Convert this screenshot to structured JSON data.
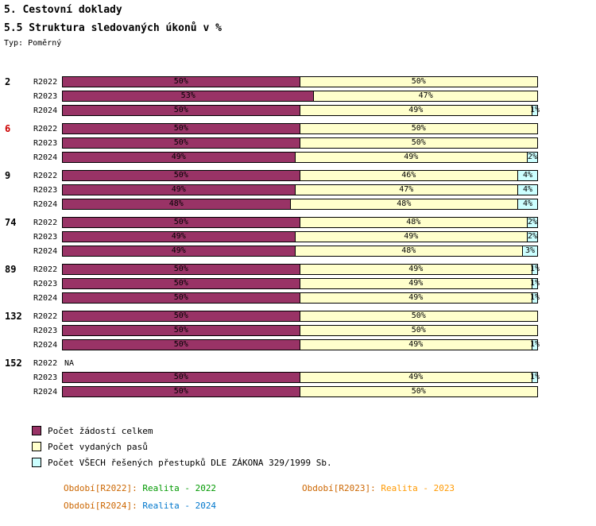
{
  "header": {
    "title": "5. Cestovní doklady",
    "subtitle": "5.5 Struktura sledovaných úkonů v %",
    "type_label": "Typ: Poměrný"
  },
  "chart_data": {
    "type": "bar",
    "orientation": "horizontal",
    "stacked": true,
    "value_unit": "%",
    "axis_range": [
      0,
      100
    ],
    "na_label": "NA",
    "highlight_color": "#cc0000",
    "series": [
      {
        "name": "Počet žádostí celkem",
        "color": "#993366"
      },
      {
        "name": "Počet vydaných pasů",
        "color": "#ffffcc"
      },
      {
        "name": "Počet VŠECH řešených přestupků DLE ZÁKONA 329/1999 Sb.",
        "color": "#ccffff"
      }
    ],
    "groups": [
      {
        "label": "2",
        "highlight": false,
        "rows": [
          {
            "period": "R2022",
            "na": false,
            "values": [
              50,
              50,
              0
            ]
          },
          {
            "period": "R2023",
            "na": false,
            "values": [
              53,
              47,
              0
            ]
          },
          {
            "period": "R2024",
            "na": false,
            "values": [
              50,
              49,
              1
            ]
          }
        ]
      },
      {
        "label": "6",
        "highlight": true,
        "rows": [
          {
            "period": "R2022",
            "na": false,
            "values": [
              50,
              50,
              0
            ]
          },
          {
            "period": "R2023",
            "na": false,
            "values": [
              50,
              50,
              0
            ]
          },
          {
            "period": "R2024",
            "na": false,
            "values": [
              49,
              49,
              2
            ]
          }
        ]
      },
      {
        "label": "9",
        "highlight": false,
        "rows": [
          {
            "period": "R2022",
            "na": false,
            "values": [
              50,
              46,
              4
            ]
          },
          {
            "period": "R2023",
            "na": false,
            "values": [
              49,
              47,
              4
            ]
          },
          {
            "period": "R2024",
            "na": false,
            "values": [
              48,
              48,
              4
            ]
          }
        ]
      },
      {
        "label": "74",
        "highlight": false,
        "rows": [
          {
            "period": "R2022",
            "na": false,
            "values": [
              50,
              48,
              2
            ]
          },
          {
            "period": "R2023",
            "na": false,
            "values": [
              49,
              49,
              2
            ]
          },
          {
            "period": "R2024",
            "na": false,
            "values": [
              49,
              48,
              3
            ]
          }
        ]
      },
      {
        "label": "89",
        "highlight": false,
        "rows": [
          {
            "period": "R2022",
            "na": false,
            "values": [
              50,
              49,
              1
            ]
          },
          {
            "period": "R2023",
            "na": false,
            "values": [
              50,
              49,
              1
            ]
          },
          {
            "period": "R2024",
            "na": false,
            "values": [
              50,
              49,
              1
            ]
          }
        ]
      },
      {
        "label": "132",
        "highlight": false,
        "rows": [
          {
            "period": "R2022",
            "na": false,
            "values": [
              50,
              50,
              0
            ]
          },
          {
            "period": "R2023",
            "na": false,
            "values": [
              50,
              50,
              0
            ]
          },
          {
            "period": "R2024",
            "na": false,
            "values": [
              50,
              49,
              1
            ]
          }
        ]
      },
      {
        "label": "152",
        "highlight": false,
        "rows": [
          {
            "period": "R2022",
            "na": true,
            "values": [
              0,
              0,
              0
            ]
          },
          {
            "period": "R2023",
            "na": false,
            "values": [
              50,
              49,
              1
            ]
          },
          {
            "period": "R2024",
            "na": false,
            "values": [
              50,
              50,
              0
            ]
          }
        ]
      }
    ]
  },
  "legend": {
    "items": [
      {
        "label": "Počet žádostí celkem",
        "color": "#993366"
      },
      {
        "label": "Počet vydaných pasů",
        "color": "#ffffcc"
      },
      {
        "label": "Počet VŠECH řešených přestupků DLE ZÁKONA 329/1999 Sb.",
        "color": "#ccffff"
      }
    ]
  },
  "footer": {
    "prefix_color": "#cc6600",
    "items": [
      {
        "prefix": "Období[R2022]:",
        "value": "Realita - 2022",
        "color": "#009900"
      },
      {
        "prefix": "Období[R2023]:",
        "value": "Realita - 2023",
        "color": "#ff9900"
      },
      {
        "prefix": "Období[R2024]:",
        "value": "Realita - 2024",
        "color": "#0077cc"
      }
    ]
  }
}
